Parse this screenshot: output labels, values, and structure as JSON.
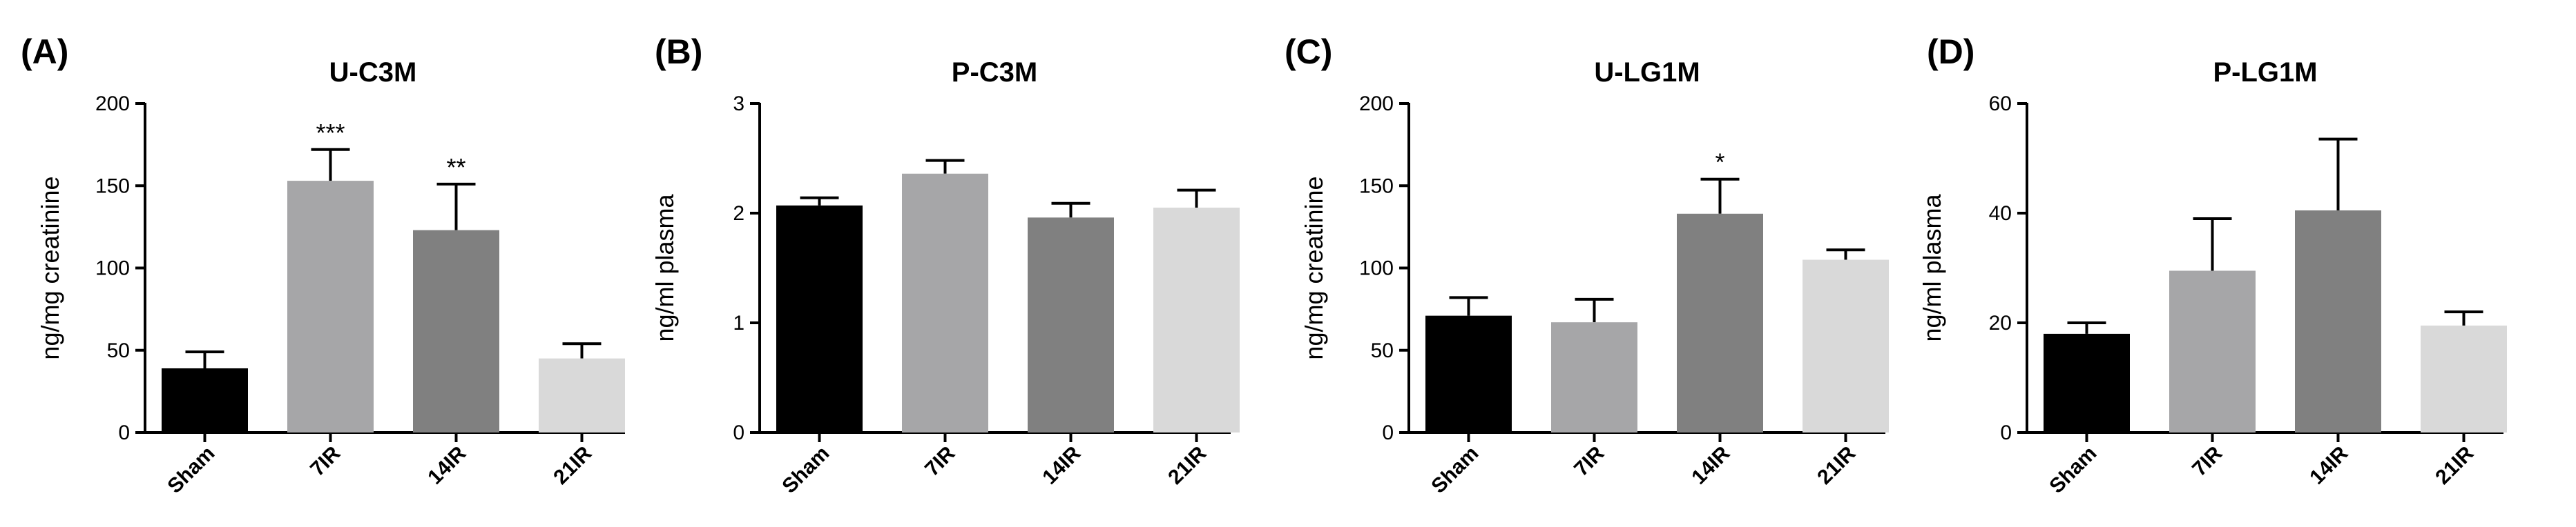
{
  "chart_data": [
    {
      "type": "bar",
      "panel": "(A)",
      "title": "U-C3M",
      "ylabel": "ng/mg creatinine",
      "xlabel": "",
      "ylim": [
        0,
        200
      ],
      "yticks": [
        "0",
        "50",
        "100",
        "150",
        "200"
      ],
      "categories": [
        "Sham",
        "7IR",
        "14IR",
        "21IR"
      ],
      "values": [
        39,
        153,
        123,
        45
      ],
      "errors": [
        10,
        19,
        28,
        9
      ],
      "significance": [
        "",
        "***",
        "**",
        ""
      ],
      "colors": [
        "#000000",
        "#a6a6a8",
        "#808080",
        "#d9d9d9"
      ]
    },
    {
      "type": "bar",
      "panel": "(B)",
      "title": "P-C3M",
      "ylabel": "ng/ml plasma",
      "xlabel": "",
      "ylim": [
        0,
        3
      ],
      "yticks": [
        "0",
        "1",
        "2",
        "3"
      ],
      "categories": [
        "Sham",
        "7IR",
        "14IR",
        "21IR"
      ],
      "values": [
        2.07,
        2.36,
        1.96,
        2.05
      ],
      "errors": [
        0.07,
        0.12,
        0.13,
        0.16
      ],
      "significance": [
        "",
        "",
        "",
        ""
      ],
      "colors": [
        "#000000",
        "#a6a6a8",
        "#808080",
        "#d9d9d9"
      ]
    },
    {
      "type": "bar",
      "panel": "(C)",
      "title": "U-LG1M",
      "ylabel": "ng/mg creatinine",
      "xlabel": "",
      "ylim": [
        0,
        200
      ],
      "yticks": [
        "0",
        "50",
        "100",
        "150",
        "200"
      ],
      "categories": [
        "Sham",
        "7IR",
        "14IR",
        "21IR"
      ],
      "values": [
        71,
        67,
        133,
        105
      ],
      "errors": [
        11,
        14,
        21,
        6
      ],
      "significance": [
        "",
        "",
        "*",
        ""
      ],
      "colors": [
        "#000000",
        "#a6a6a8",
        "#808080",
        "#d9d9d9"
      ]
    },
    {
      "type": "bar",
      "panel": "(D)",
      "title": "P-LG1M",
      "ylabel": "ng/ml plasma",
      "xlabel": "",
      "ylim": [
        0,
        60
      ],
      "yticks": [
        "0",
        "20",
        "40",
        "60"
      ],
      "categories": [
        "Sham",
        "7IR",
        "14IR",
        "21IR"
      ],
      "values": [
        18,
        29.5,
        40.5,
        19.5
      ],
      "errors": [
        2,
        9.5,
        13,
        2.5
      ],
      "significance": [
        "",
        "",
        "",
        ""
      ],
      "colors": [
        "#000000",
        "#a6a6a8",
        "#808080",
        "#d9d9d9"
      ]
    }
  ]
}
